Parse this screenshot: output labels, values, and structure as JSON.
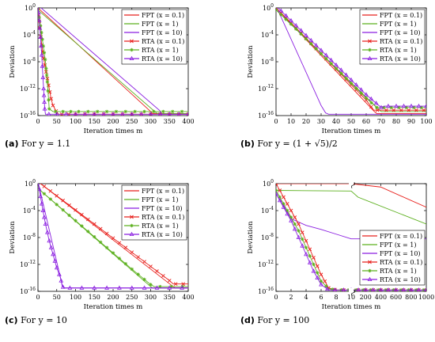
{
  "colors": {
    "red": "#e8211d",
    "green": "#5cb01e",
    "purple": "#8a1ee0"
  },
  "chart_data": [
    {
      "type": "line",
      "caption_letter": "(a)",
      "caption_text": "For y = 1.1",
      "xlabel": "Iteration times m",
      "ylabel": "Deviation",
      "xlim": [
        0,
        400
      ],
      "ylim_log10": [
        -16,
        0
      ],
      "y_scale": "log",
      "xticks": [
        "0",
        "50",
        "100",
        "150",
        "200",
        "250",
        "300",
        "350",
        "400"
      ],
      "yticks": [
        "10^0",
        "10^-4",
        "10^-8",
        "10^-12",
        "10^-16"
      ],
      "legend_position": "top-right",
      "series": [
        {
          "name": "FPT (x = 0.1)",
          "color": "red",
          "marker": "none",
          "x": [
            0,
            300,
            305,
            400
          ],
          "y": [
            0,
            -15.4,
            -15.7,
            -15.7
          ]
        },
        {
          "name": "FPT (x = 1)",
          "color": "green",
          "marker": "none",
          "x": [
            0,
            315,
            320,
            400
          ],
          "y": [
            -0.3,
            -15.6,
            -15.7,
            -15.7
          ]
        },
        {
          "name": "FPT (x = 10)",
          "color": "purple",
          "marker": "none",
          "x": [
            0,
            325,
            330,
            400
          ],
          "y": [
            0.4,
            -15.3,
            -15.8,
            -15.8
          ]
        },
        {
          "name": "RTA (x = 0.1)",
          "color": "red",
          "marker": "x",
          "x": [
            0,
            5,
            10,
            15,
            20,
            25,
            30,
            35,
            40,
            45,
            50,
            55,
            60,
            65,
            70,
            80,
            90,
            100,
            150,
            200,
            250,
            300,
            350,
            400
          ],
          "y": [
            0,
            -3,
            -5.5,
            -7.5,
            -9,
            -10.5,
            -12,
            -13.5,
            -14.5,
            -15,
            -15.5,
            -15.8,
            -15.8,
            -15.8,
            -15.8,
            -15.8,
            -15.8,
            -15.8,
            -15.8,
            -15.8,
            -15.8,
            -15.8,
            -15.8,
            -15.8
          ]
        },
        {
          "name": "RTA (x = 1)",
          "color": "green",
          "marker": "star",
          "x": [
            0,
            5,
            10,
            15,
            20,
            25,
            30,
            40,
            50,
            75,
            100,
            150,
            200,
            250,
            300,
            350,
            400
          ],
          "y": [
            -0.3,
            -2,
            -4,
            -6,
            -8,
            -11,
            -15,
            -15.4,
            -15.4,
            -15.4,
            -15.4,
            -15.4,
            -15.4,
            -15.4,
            -15.4,
            -15.4,
            -15.4
          ]
        },
        {
          "name": "RTA (x = 10)",
          "color": "purple",
          "marker": "tri",
          "x": [
            0,
            5,
            10,
            15,
            18,
            20,
            25,
            50,
            100,
            150,
            200,
            250,
            300,
            350,
            400
          ],
          "y": [
            0.4,
            -3,
            -7,
            -12,
            -15,
            -15.8,
            -15.8,
            -15.8,
            -15.8,
            -15.8,
            -15.8,
            -15.8,
            -15.8,
            -15.8,
            -15.8
          ]
        }
      ]
    },
    {
      "type": "line",
      "caption_letter": "(b)",
      "caption_text": "For y = (1 + √5)/2",
      "xlabel": "Iteration times m",
      "ylabel": "Deviation",
      "xlim": [
        0,
        100
      ],
      "ylim_log10": [
        -16,
        0
      ],
      "y_scale": "log",
      "xticks": [
        "0",
        "10",
        "20",
        "30",
        "40",
        "50",
        "60",
        "70",
        "80",
        "90",
        "100"
      ],
      "yticks": [
        "10^0",
        "10^-4",
        "10^-8",
        "10^-12",
        "10^-16"
      ],
      "legend_position": "top-right",
      "series": [
        {
          "name": "FPT (x = 0.1)",
          "color": "red",
          "marker": "none",
          "x": [
            0,
            65,
            67,
            100
          ],
          "y": [
            0,
            -15.3,
            -15.7,
            -15.7
          ]
        },
        {
          "name": "FPT (x = 1)",
          "color": "green",
          "marker": "none",
          "x": [
            0,
            68,
            70,
            100
          ],
          "y": [
            -0.3,
            -15,
            -15.4,
            -15.4
          ]
        },
        {
          "name": "FPT (x = 10)",
          "color": "purple",
          "marker": "none",
          "x": [
            0,
            30,
            33,
            35,
            100
          ],
          "y": [
            0.3,
            -14.5,
            -15.6,
            -15.8,
            -15.8
          ]
        },
        {
          "name": "RTA (x = 0.1)",
          "color": "red",
          "marker": "x",
          "x": [
            0,
            10,
            20,
            30,
            40,
            50,
            60,
            65,
            70,
            80,
            90,
            100
          ],
          "y": [
            0,
            -2.2,
            -4.5,
            -6.8,
            -9.1,
            -11.4,
            -13.7,
            -15.2,
            -15.2,
            -15.2,
            -15.2,
            -15.2
          ]
        },
        {
          "name": "RTA (x = 1)",
          "color": "green",
          "marker": "star",
          "x": [
            0,
            10,
            20,
            30,
            40,
            50,
            60,
            67,
            70,
            80,
            90,
            100
          ],
          "y": [
            -0.3,
            -2.4,
            -4.6,
            -6.8,
            -9,
            -11.2,
            -13.4,
            -14.8,
            -14.8,
            -14.8,
            -14.8,
            -14.8
          ]
        },
        {
          "name": "RTA (x = 10)",
          "color": "purple",
          "marker": "tri",
          "x": [
            0,
            10,
            20,
            30,
            40,
            50,
            60,
            70,
            72,
            80,
            90,
            100
          ],
          "y": [
            0.3,
            -1.9,
            -4.1,
            -6.3,
            -8.5,
            -10.7,
            -12.9,
            -14.8,
            -14.6,
            -14.6,
            -14.6,
            -14.6
          ]
        }
      ]
    },
    {
      "type": "line",
      "caption_letter": "(c)",
      "caption_text": "For y = 10",
      "xlabel": "Iteration times m",
      "ylabel": "Deviation",
      "xlim": [
        0,
        400
      ],
      "ylim_log10": [
        -16,
        0
      ],
      "y_scale": "log",
      "xticks": [
        "0",
        "50",
        "100",
        "150",
        "200",
        "250",
        "300",
        "350",
        "400"
      ],
      "yticks": [
        "10^0",
        "10^-4",
        "10^-8",
        "10^-12",
        "10^-16"
      ],
      "legend_position": "top-right",
      "series": [
        {
          "name": "FPT (x = 0.1)",
          "color": "red",
          "marker": "none",
          "x": [
            0,
            360,
            365,
            400
          ],
          "y": [
            0.3,
            -15.3,
            -15.5,
            -15.5
          ]
        },
        {
          "name": "FPT (x = 1)",
          "color": "green",
          "marker": "none",
          "x": [
            0,
            300,
            305,
            400
          ],
          "y": [
            -0.7,
            -15.3,
            -15.5,
            -15.5
          ]
        },
        {
          "name": "FPT (x = 10)",
          "color": "purple",
          "marker": "none",
          "x": [
            0,
            65,
            70,
            400
          ],
          "y": [
            0.3,
            -15.2,
            -15.5,
            -15.5
          ]
        },
        {
          "name": "RTA (x = 0.1)",
          "color": "red",
          "marker": "x",
          "x": [
            0,
            50,
            100,
            150,
            200,
            250,
            300,
            350,
            360,
            380,
            400
          ],
          "y": [
            0.3,
            -1.8,
            -3.9,
            -6,
            -8.1,
            -10.2,
            -12.3,
            -14.4,
            -14.9,
            -14.9,
            -14.9
          ],
          "markers_every": 10
        },
        {
          "name": "RTA (x = 1)",
          "color": "green",
          "marker": "star",
          "x": [
            0,
            50,
            100,
            150,
            200,
            250,
            300,
            310,
            400
          ],
          "y": [
            -0.7,
            -3.1,
            -5.5,
            -7.9,
            -10.3,
            -12.7,
            -15,
            -15.3,
            -15.3
          ],
          "markers_every": 10
        },
        {
          "name": "RTA (x = 10)",
          "color": "purple",
          "marker": "tri",
          "x": [
            0,
            10,
            20,
            30,
            40,
            50,
            60,
            65,
            70,
            100,
            200,
            300,
            400
          ],
          "y": [
            0.3,
            -3,
            -6,
            -8.5,
            -10.5,
            -12.5,
            -14,
            -15.3,
            -15.5,
            -15.5,
            -15.5,
            -15.5,
            -15.5
          ],
          "markers_every": 10
        }
      ]
    },
    {
      "type": "line",
      "caption_letter": "(d)",
      "caption_text": "For y = 100",
      "xlabel": "Iteration times m",
      "ylabel": "Deviation",
      "x_break": true,
      "x_segment1": [
        0,
        10
      ],
      "x_segment2": [
        10,
        1000
      ],
      "ylim_log10": [
        -16,
        0
      ],
      "y_scale": "log",
      "xticks": [
        "0",
        "2",
        "4",
        "6",
        "8",
        "10",
        "200",
        "400",
        "600",
        "800",
        "1000"
      ],
      "yticks": [
        "10^0",
        "10^-4",
        "10^-8",
        "10^-12",
        "10^-16"
      ],
      "legend_position": "bottom-right",
      "series": [
        {
          "name": "FPT (x = 0.1)",
          "color": "red",
          "marker": "none",
          "x": [
            0,
            10,
            400,
            1000
          ],
          "y": [
            0,
            0,
            -0.5,
            -3.5
          ]
        },
        {
          "name": "FPT (x = 1)",
          "color": "green",
          "marker": "none",
          "x": [
            0,
            10,
            100,
            1000
          ],
          "y": [
            -1,
            -1.1,
            -2,
            -6
          ]
        },
        {
          "name": "FPT (x = 10)",
          "color": "purple",
          "marker": "none",
          "x": [
            0,
            2,
            4,
            6,
            8,
            10,
            1000
          ],
          "y": [
            -1.5,
            -5.2,
            -6.2,
            -6.8,
            -7.5,
            -8.2,
            -8.2
          ]
        },
        {
          "name": "RTA (x = 0.1)",
          "color": "red",
          "marker": "x",
          "x": [
            0,
            1,
            2,
            3,
            4,
            5,
            6,
            7,
            8,
            10,
            200,
            400,
            600,
            800,
            1000
          ],
          "y": [
            0,
            -2,
            -4,
            -6,
            -8.5,
            -11,
            -13.5,
            -15.5,
            -15.8,
            -15.8,
            -15.8,
            -15.8,
            -15.8,
            -15.8,
            -15.8
          ]
        },
        {
          "name": "RTA (x = 1)",
          "color": "green",
          "marker": "star",
          "x": [
            0,
            1,
            2,
            3,
            4,
            5,
            6,
            7,
            8,
            10,
            200,
            400,
            600,
            800,
            1000
          ],
          "y": [
            -1,
            -3,
            -5,
            -7,
            -9.5,
            -12,
            -14.5,
            -15.6,
            -15.8,
            -15.8,
            -15.8,
            -15.8,
            -15.8,
            -15.8,
            -15.8
          ]
        },
        {
          "name": "RTA (x = 10)",
          "color": "purple",
          "marker": "tri",
          "x": [
            0,
            1,
            2,
            3,
            4,
            5,
            6,
            7,
            8,
            10,
            200,
            400,
            600,
            800,
            1000
          ],
          "y": [
            -1.5,
            -3.5,
            -5.5,
            -8,
            -10.5,
            -13,
            -15,
            -15.8,
            -15.8,
            -15.8,
            -15.8,
            -15.8,
            -15.8,
            -15.8,
            -15.8
          ]
        }
      ]
    }
  ]
}
